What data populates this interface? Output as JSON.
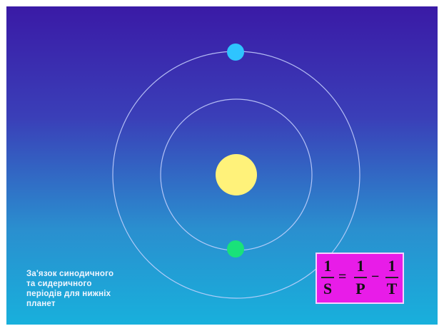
{
  "caption": "За'язок  синодичного\nта сидеричного\nперіодів для  нижніх\nпланет",
  "formula": {
    "left": {
      "numerator": "1",
      "denominator": "S"
    },
    "equals": "=",
    "middle": {
      "numerator": "1",
      "denominator": "P"
    },
    "minus": "−",
    "right": {
      "numerator": "1",
      "denominator": "T"
    }
  },
  "colors": {
    "sun": "#fff27a",
    "outer_planet": "#2ec4ff",
    "inner_planet": "#19e27a",
    "orbit": "#c9d3ff",
    "formula_box": "#e81ce8"
  }
}
